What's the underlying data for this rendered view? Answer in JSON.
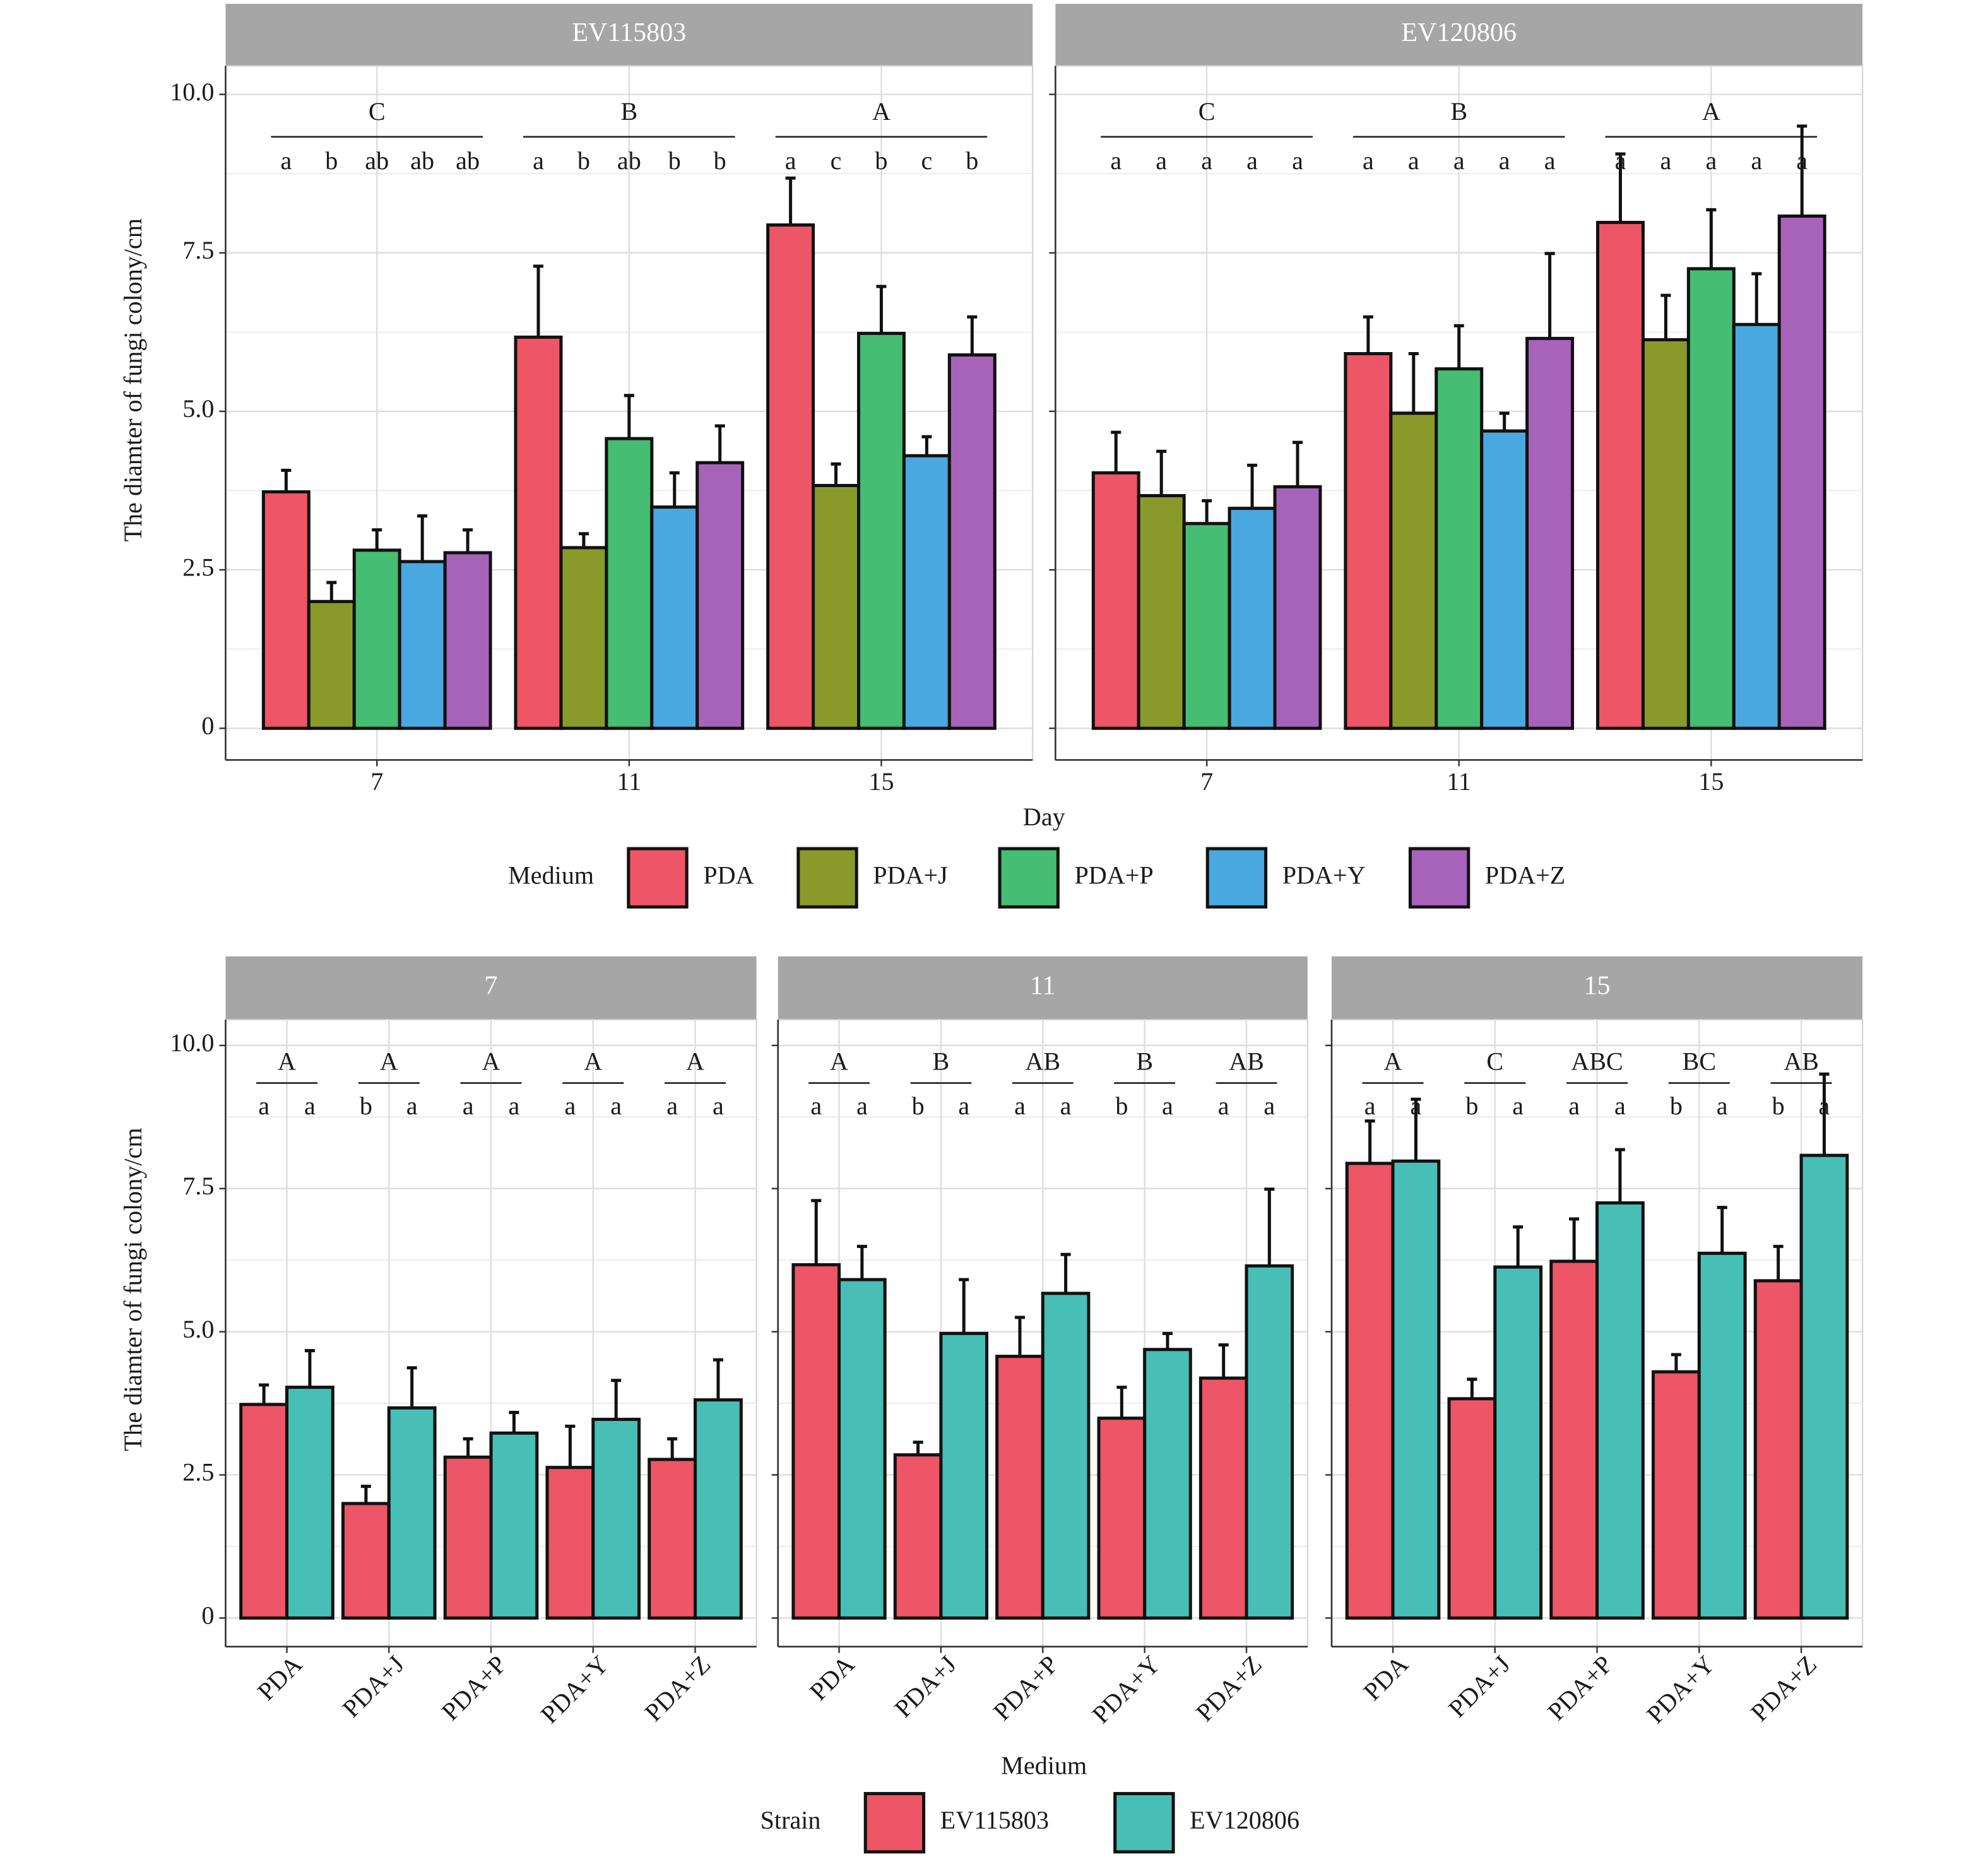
{
  "chart_data": [
    {
      "type": "bar",
      "ylabel": "The diamter of fungi colony/cm",
      "xlabel": "Day",
      "ylim": [
        -0.5,
        10.45
      ],
      "yticks": [
        0,
        2.5,
        {
          "value": 5,
          "label": "5.0"
        },
        7.5,
        {
          "value": 10,
          "label": "10.0"
        }
      ],
      "grid": true,
      "legend": "bottom",
      "legend_title": "Medium",
      "categories": [
        "7",
        "11",
        "15"
      ],
      "series": [
        {
          "name": "PDA",
          "color": "#ee5566"
        },
        {
          "name": "PDA+J",
          "color": "#8a9a2a"
        },
        {
          "name": "PDA+P",
          "color": "#45bd72"
        },
        {
          "name": "PDA+Y",
          "color": "#4aa8e0"
        },
        {
          "name": "PDA+Z",
          "color": "#a763b9"
        }
      ],
      "panels": [
        {
          "title": "EV115803",
          "group_letters": [
            "C",
            "B",
            "A"
          ],
          "values": [
            [
              3.73,
              6.17,
              7.94
            ],
            [
              2.0,
              2.85,
              3.83
            ],
            [
              2.81,
              4.57,
              6.23
            ],
            [
              2.63,
              3.49,
              4.3
            ],
            [
              2.77,
              4.19,
              5.89
            ]
          ],
          "errors": [
            [
              0.34,
              1.12,
              0.74
            ],
            [
              0.3,
              0.22,
              0.34
            ],
            [
              0.32,
              0.68,
              0.74
            ],
            [
              0.72,
              0.54,
              0.3
            ],
            [
              0.36,
              0.58,
              0.6
            ]
          ],
          "letters": [
            [
              "a",
              "b",
              "ab",
              "ab",
              "ab"
            ],
            [
              "a",
              "b",
              "ab",
              "b",
              "b"
            ],
            [
              "a",
              "c",
              "b",
              "c",
              "b"
            ]
          ]
        },
        {
          "title": "EV120806",
          "group_letters": [
            "C",
            "B",
            "A"
          ],
          "values": [
            [
              4.03,
              5.91,
              7.98
            ],
            [
              3.67,
              4.97,
              6.13
            ],
            [
              3.23,
              5.67,
              7.25
            ],
            [
              3.47,
              4.69,
              6.37
            ],
            [
              3.81,
              6.15,
              8.08
            ]
          ],
          "errors": [
            [
              0.64,
              0.58,
              1.08
            ],
            [
              0.7,
              0.94,
              0.7
            ],
            [
              0.36,
              0.68,
              0.93
            ],
            [
              0.68,
              0.28,
              0.8
            ],
            [
              0.7,
              1.34,
              1.42
            ]
          ],
          "letters": [
            [
              "a",
              "a",
              "a",
              "a",
              "a"
            ],
            [
              "a",
              "a",
              "a",
              "a",
              "a"
            ],
            [
              "a",
              "a",
              "a",
              "a",
              "a"
            ]
          ]
        }
      ]
    },
    {
      "type": "bar",
      "ylabel": "The diamter of fungi colony/cm",
      "xlabel": "Medium",
      "ylim": [
        -0.5,
        10.45
      ],
      "yticks": [
        0,
        2.5,
        {
          "value": 5,
          "label": "5.0"
        },
        7.5,
        {
          "value": 10,
          "label": "10.0"
        }
      ],
      "grid": true,
      "legend": "bottom",
      "legend_title": "Strain",
      "categories": [
        "PDA",
        "PDA+J",
        "PDA+P",
        "PDA+Y",
        "PDA+Z"
      ],
      "series": [
        {
          "name": "EV115803",
          "color": "#ee5566"
        },
        {
          "name": "EV120806",
          "color": "#47bfb6"
        }
      ],
      "panels": [
        {
          "title": "7",
          "group_letters": [
            "A",
            "A",
            "A",
            "A",
            "A"
          ],
          "values": [
            [
              3.73,
              2.0,
              2.81,
              2.63,
              2.77
            ],
            [
              4.03,
              3.67,
              3.23,
              3.47,
              3.81
            ]
          ],
          "errors": [
            [
              0.34,
              0.3,
              0.32,
              0.72,
              0.36
            ],
            [
              0.64,
              0.7,
              0.36,
              0.68,
              0.7
            ]
          ],
          "letters": [
            [
              "a",
              "a"
            ],
            [
              "b",
              "a"
            ],
            [
              "a",
              "a"
            ],
            [
              "a",
              "a"
            ],
            [
              "a",
              "a"
            ]
          ]
        },
        {
          "title": "11",
          "group_letters": [
            "A",
            "B",
            "AB",
            "B",
            "AB"
          ],
          "values": [
            [
              6.17,
              2.85,
              4.57,
              3.49,
              4.19
            ],
            [
              5.91,
              4.97,
              5.67,
              4.69,
              6.15
            ]
          ],
          "errors": [
            [
              1.12,
              0.22,
              0.68,
              0.54,
              0.58
            ],
            [
              0.58,
              0.94,
              0.68,
              0.28,
              1.34
            ]
          ],
          "letters": [
            [
              "a",
              "a"
            ],
            [
              "b",
              "a"
            ],
            [
              "a",
              "a"
            ],
            [
              "b",
              "a"
            ],
            [
              "a",
              "a"
            ]
          ]
        },
        {
          "title": "15",
          "group_letters": [
            "A",
            "C",
            "ABC",
            "BC",
            "AB"
          ],
          "values": [
            [
              7.94,
              3.83,
              6.23,
              4.3,
              5.89
            ],
            [
              7.98,
              6.13,
              7.25,
              6.37,
              8.08
            ]
          ],
          "errors": [
            [
              0.74,
              0.34,
              0.74,
              0.3,
              0.6
            ],
            [
              1.08,
              0.7,
              0.93,
              0.8,
              1.42
            ]
          ],
          "letters": [
            [
              "a",
              "a"
            ],
            [
              "b",
              "a"
            ],
            [
              "a",
              "a"
            ],
            [
              "b",
              "a"
            ],
            [
              "b",
              "a"
            ]
          ]
        }
      ]
    }
  ]
}
